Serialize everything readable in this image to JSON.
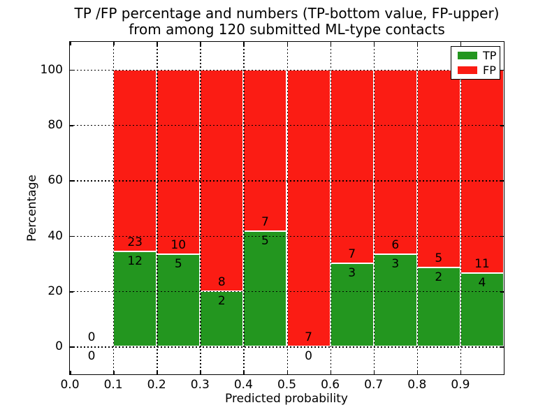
{
  "chart_data": {
    "type": "bar",
    "stacked": true,
    "title_line1": "TP /FP percentage and numbers (TP-bottom value, FP-upper)",
    "title_line2": "from among 120 submitted ML-type contacts",
    "xlabel": "Predicted probability",
    "ylabel": "Percentage",
    "xlim": [
      0.0,
      1.0
    ],
    "ylim": [
      -10,
      110
    ],
    "yticks": [
      0,
      20,
      40,
      60,
      80,
      100
    ],
    "xtick_labels": [
      "0.0",
      "0.1",
      "0.2",
      "0.3",
      "0.4",
      "0.5",
      "0.6",
      "0.7",
      "0.8",
      "0.9"
    ],
    "grid": "dotted black, horizontal at yticks and vertical at xticks, drawn above bars",
    "total_contacts": 120,
    "colors": {
      "tp": "#23961f",
      "fp": "#fb1c14",
      "bar_edge": "#ffffff"
    },
    "legend": {
      "position": "upper right",
      "entries": [
        {
          "label": "TP",
          "color": "#23961f"
        },
        {
          "label": "FP",
          "color": "#fb1c14"
        }
      ]
    },
    "bins": [
      {
        "x0": 0.0,
        "x1": 0.1,
        "tp": 0,
        "fp": 0
      },
      {
        "x0": 0.1,
        "x1": 0.2,
        "tp": 12,
        "fp": 23
      },
      {
        "x0": 0.2,
        "x1": 0.3,
        "tp": 5,
        "fp": 10
      },
      {
        "x0": 0.3,
        "x1": 0.4,
        "tp": 2,
        "fp": 8
      },
      {
        "x0": 0.4,
        "x1": 0.5,
        "tp": 5,
        "fp": 7
      },
      {
        "x0": 0.5,
        "x1": 0.6,
        "tp": 0,
        "fp": 7
      },
      {
        "x0": 0.6,
        "x1": 0.7,
        "tp": 3,
        "fp": 7
      },
      {
        "x0": 0.7,
        "x1": 0.8,
        "tp": 3,
        "fp": 6
      },
      {
        "x0": 0.8,
        "x1": 0.9,
        "tp": 2,
        "fp": 5
      },
      {
        "x0": 0.9,
        "x1": 1.0,
        "tp": 4,
        "fp": 11
      }
    ]
  }
}
